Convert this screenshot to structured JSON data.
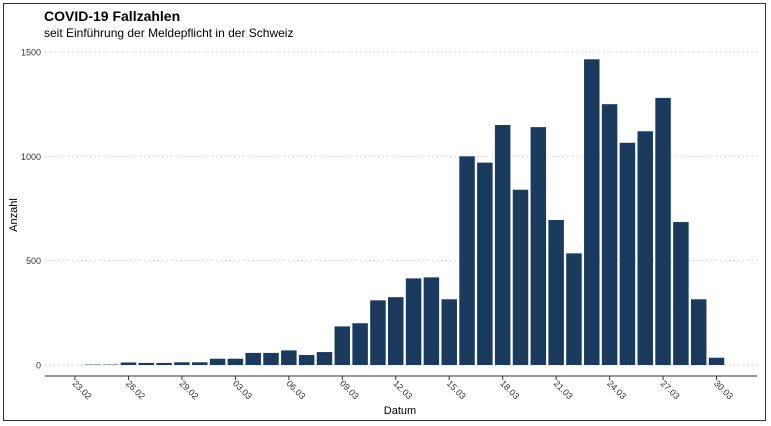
{
  "chart_data": {
    "type": "bar",
    "title": "COVID-19 Fallzahlen",
    "subtitle": "seit Einführung der Meldepflicht in der Schweiz",
    "xlabel": "Datum",
    "ylabel": "Anzahl",
    "ylim": [
      0,
      1500
    ],
    "yticks": [
      0,
      500,
      1000,
      1500
    ],
    "xticks": [
      "23.02",
      "26.02",
      "29.02",
      "03.03",
      "06.03",
      "09.03",
      "12.03",
      "15.03",
      "18.03",
      "21.03",
      "24.03",
      "27.03",
      "30.03"
    ],
    "grid": "horizontal-dotted",
    "categories": [
      "23.02",
      "24.02",
      "25.02",
      "26.02",
      "27.02",
      "28.02",
      "29.02",
      "01.03",
      "02.03",
      "03.03",
      "04.03",
      "05.03",
      "06.03",
      "07.03",
      "08.03",
      "09.03",
      "10.03",
      "11.03",
      "12.03",
      "13.03",
      "14.03",
      "15.03",
      "16.03",
      "17.03",
      "18.03",
      "19.03",
      "20.03",
      "21.03",
      "22.03",
      "23.03",
      "24.03",
      "25.03",
      "26.03",
      "27.03",
      "28.03",
      "29.03",
      "30.03"
    ],
    "values": [
      0,
      2,
      2,
      12,
      10,
      10,
      13,
      13,
      30,
      30,
      58,
      58,
      70,
      48,
      62,
      185,
      200,
      310,
      325,
      415,
      420,
      315,
      1000,
      970,
      1150,
      840,
      1140,
      695,
      535,
      1465,
      1250,
      1065,
      1120,
      1280,
      685,
      315,
      35
    ],
    "bar_color": "#1a3b5e"
  }
}
